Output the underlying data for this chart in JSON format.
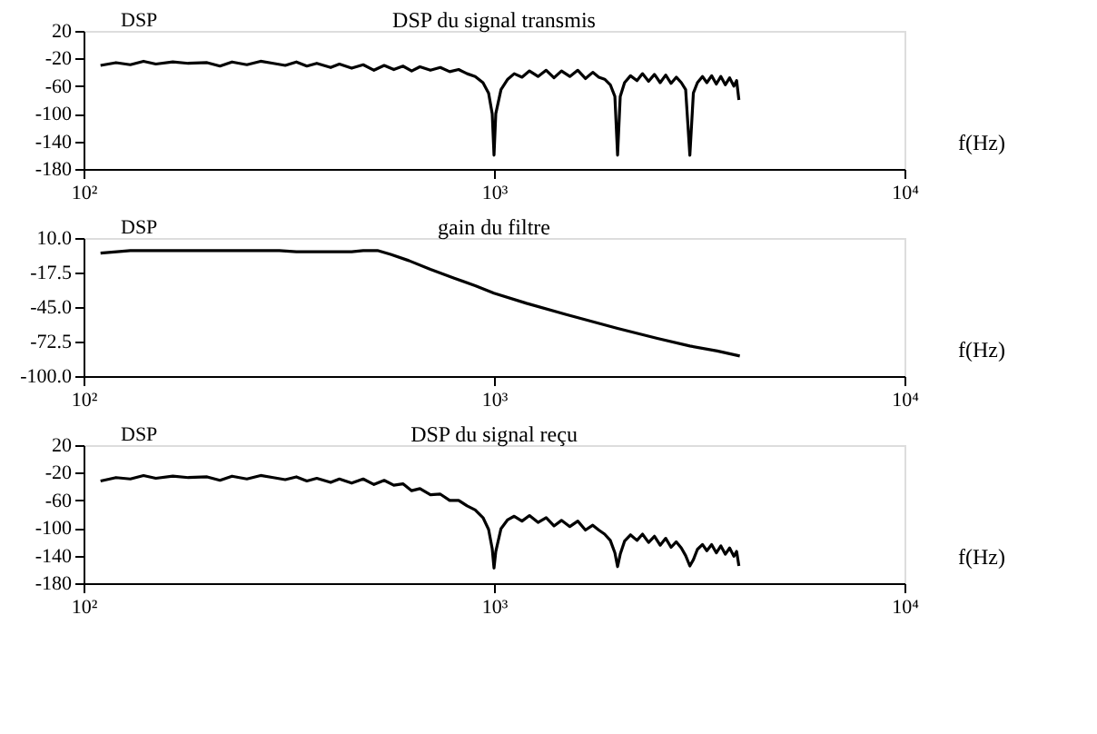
{
  "chart_data": [
    {
      "type": "line",
      "title": "DSP du signal transmis",
      "xlabel": "f(Hz)",
      "ylabel": "DSP",
      "log": "x",
      "grid": false,
      "xlim": [
        100,
        10000
      ],
      "xticks": [
        {
          "value": 100,
          "label": "10²"
        },
        {
          "value": 1000,
          "label": "10³"
        },
        {
          "value": 10000,
          "label": "10⁴"
        }
      ],
      "ylim": [
        -180,
        20
      ],
      "yticks": [
        20,
        -20,
        -60,
        -100,
        -140,
        -180
      ],
      "series": [
        {
          "color": "#000000",
          "x": [
            110,
            120,
            130,
            140,
            150,
            165,
            180,
            200,
            215,
            230,
            250,
            270,
            290,
            310,
            330,
            350,
            370,
            400,
            420,
            450,
            480,
            510,
            540,
            570,
            600,
            630,
            660,
            700,
            740,
            780,
            820,
            860,
            900,
            940,
            970,
            990,
            1000,
            1010,
            1040,
            1080,
            1120,
            1170,
            1220,
            1280,
            1340,
            1400,
            1460,
            1530,
            1600,
            1670,
            1740,
            1800,
            1860,
            1920,
            1970,
            2000,
            2030,
            2080,
            2150,
            2230,
            2300,
            2380,
            2460,
            2540,
            2620,
            2700,
            2780,
            2860,
            2930,
            3000,
            3060,
            3130,
            3220,
            3300,
            3390,
            3480,
            3570,
            3660,
            3750,
            3840,
            3900,
            3950
          ],
          "values": [
            -30,
            -26,
            -29,
            -24,
            -28,
            -25,
            -27,
            -26,
            -31,
            -25,
            -29,
            -24,
            -27,
            -30,
            -25,
            -31,
            -27,
            -33,
            -28,
            -34,
            -29,
            -37,
            -30,
            -36,
            -31,
            -38,
            -32,
            -37,
            -33,
            -39,
            -36,
            -42,
            -46,
            -55,
            -70,
            -100,
            -160,
            -100,
            -65,
            -50,
            -42,
            -47,
            -38,
            -46,
            -37,
            -48,
            -38,
            -46,
            -37,
            -49,
            -40,
            -47,
            -50,
            -58,
            -75,
            -160,
            -75,
            -55,
            -45,
            -52,
            -42,
            -53,
            -43,
            -55,
            -44,
            -56,
            -47,
            -55,
            -65,
            -160,
            -70,
            -55,
            -46,
            -55,
            -45,
            -57,
            -46,
            -58,
            -48,
            -60,
            -52,
            -80
          ]
        }
      ]
    },
    {
      "type": "line",
      "title": "gain du filtre",
      "xlabel": "f(Hz)",
      "ylabel": "DSP",
      "log": "x",
      "grid": false,
      "xlim": [
        100,
        10000
      ],
      "xticks": [
        {
          "value": 100,
          "label": "10²"
        },
        {
          "value": 1000,
          "label": "10³"
        },
        {
          "value": 10000,
          "label": "10⁴"
        }
      ],
      "ylim": [
        -100,
        10
      ],
      "yticks": [
        {
          "value": 10,
          "label": "10.0"
        },
        -17.5,
        {
          "value": -45,
          "label": "-45.0"
        },
        -72.5,
        {
          "value": -100,
          "label": "-100.0"
        }
      ],
      "series": [
        {
          "color": "#000000",
          "x": [
            110,
            130,
            200,
            300,
            330,
            400,
            450,
            480,
            520,
            560,
            620,
            700,
            800,
            900,
            1000,
            1200,
            1500,
            2000,
            2500,
            3000,
            3500,
            3970
          ],
          "values": [
            -2,
            0,
            0,
            0,
            -1,
            -1,
            -1,
            0,
            0,
            -3,
            -8,
            -15,
            -22,
            -28,
            -34,
            -42,
            -51,
            -62,
            -70,
            -76,
            -80,
            -84
          ]
        }
      ]
    },
    {
      "type": "line",
      "title": "DSP du signal reçu",
      "xlabel": "f(Hz)",
      "ylabel": "DSP",
      "log": "x",
      "grid": false,
      "xlim": [
        100,
        10000
      ],
      "xticks": [
        {
          "value": 100,
          "label": "10²"
        },
        {
          "value": 1000,
          "label": "10³"
        },
        {
          "value": 10000,
          "label": "10⁴"
        }
      ],
      "ylim": [
        -180,
        20
      ],
      "yticks": [
        20,
        -20,
        -60,
        -100,
        -140,
        -180
      ],
      "series": [
        {
          "color": "#000000",
          "x": [
            110,
            120,
            130,
            140,
            150,
            165,
            180,
            200,
            215,
            230,
            250,
            270,
            290,
            310,
            330,
            350,
            370,
            400,
            420,
            450,
            480,
            510,
            540,
            570,
            600,
            630,
            660,
            700,
            740,
            780,
            820,
            860,
            900,
            940,
            970,
            990,
            1000,
            1010,
            1040,
            1080,
            1120,
            1170,
            1220,
            1280,
            1340,
            1400,
            1460,
            1530,
            1600,
            1670,
            1740,
            1800,
            1860,
            1920,
            1970,
            2000,
            2030,
            2080,
            2150,
            2230,
            2300,
            2380,
            2460,
            2540,
            2620,
            2700,
            2780,
            2860,
            2930,
            3000,
            3060,
            3130,
            3220,
            3300,
            3390,
            3480,
            3570,
            3660,
            3750,
            3840,
            3900,
            3950
          ],
          "values": [
            -32,
            -27,
            -29,
            -24,
            -28,
            -25,
            -27,
            -26,
            -31,
            -25,
            -29,
            -24,
            -27,
            -30,
            -26,
            -32,
            -28,
            -34,
            -29,
            -35,
            -29,
            -37,
            -31,
            -38,
            -36,
            -46,
            -43,
            -52,
            -51,
            -60,
            -60,
            -68,
            -74,
            -85,
            -102,
            -130,
            -158,
            -134,
            -101,
            -88,
            -83,
            -90,
            -82,
            -92,
            -85,
            -97,
            -89,
            -98,
            -90,
            -103,
            -96,
            -103,
            -109,
            -118,
            -136,
            -156,
            -138,
            -119,
            -110,
            -118,
            -109,
            -121,
            -112,
            -125,
            -115,
            -128,
            -120,
            -129,
            -140,
            -155,
            -146,
            -131,
            -124,
            -133,
            -124,
            -136,
            -126,
            -138,
            -129,
            -141,
            -134,
            -155
          ]
        }
      ]
    }
  ]
}
